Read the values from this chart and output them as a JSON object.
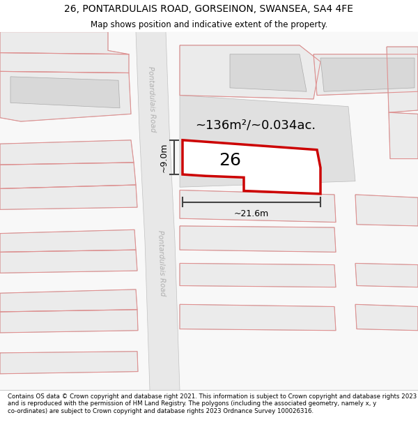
{
  "title": "26, PONTARDULAIS ROAD, GORSEINON, SWANSEA, SA4 4FE",
  "subtitle": "Map shows position and indicative extent of the property.",
  "footer": "Contains OS data © Crown copyright and database right 2021. This information is subject to Crown copyright and database rights 2023 and is reproduced with the permission of HM Land Registry. The polygons (including the associated geometry, namely x, y co-ordinates) are subject to Crown copyright and database rights 2023 Ordnance Survey 100026316.",
  "area_label": "~136m²/~0.034ac.",
  "width_label": "~21.6m",
  "height_label": "~9.0m",
  "property_number": "26",
  "bg_color": "#f8f8f8",
  "road_fill": "#e8e8e8",
  "road_edge": "#c0c0c0",
  "parcel_fill": "#ebebeb",
  "parcel_edge": "#bbbbbb",
  "pink": "#e09090",
  "highlight_fill": "#ffffff",
  "highlight_edge": "#cc0000",
  "dim_color": "#444444",
  "road_label_color": "#b0b0b0",
  "building_fill": "#d8d8d8",
  "building_edge": "#aaaaaa",
  "title_fontsize": 10,
  "subtitle_fontsize": 8.5,
  "footer_fontsize": 6.2,
  "area_fontsize": 13,
  "prop_num_fontsize": 18,
  "dim_fontsize": 9,
  "road_label_fontsize": 7.5
}
